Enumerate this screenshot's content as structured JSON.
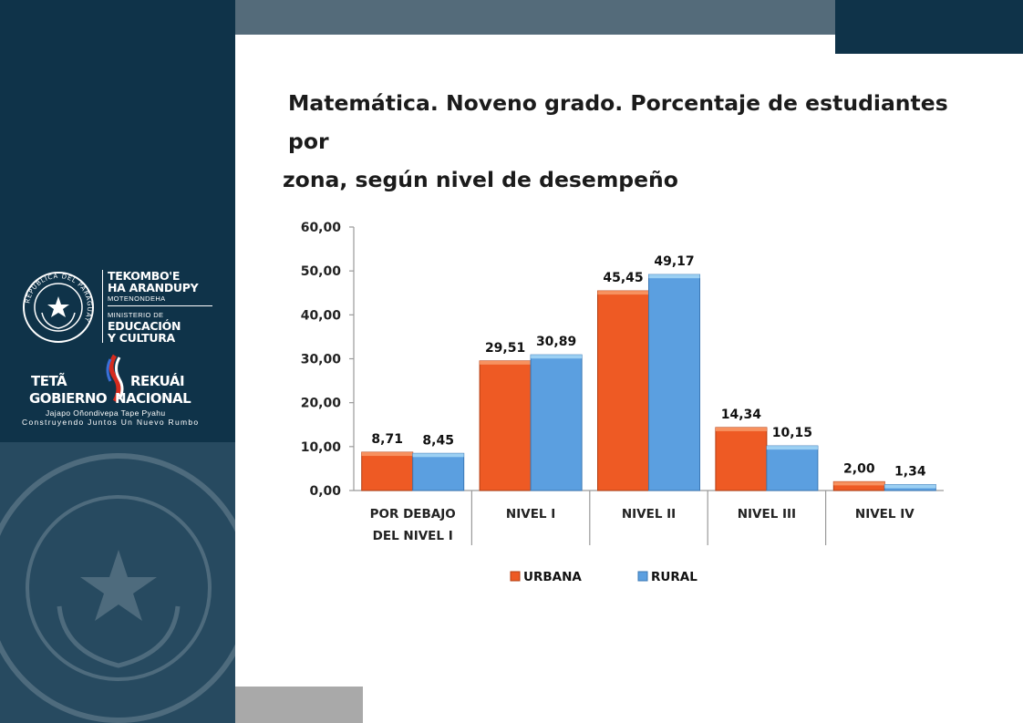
{
  "slide": {
    "title_line1": "Matemática. Noveno grado. Porcentaje de estudiantes por",
    "title_line2": "zona,  según nivel de desempeño"
  },
  "branding": {
    "seal_text": "REPUBLICA DEL PARAGUAY",
    "ministry_line1": "TEKOMBO'E",
    "ministry_line2": "HA ARANDUPY",
    "ministry_line3": "MOTENONDEHA",
    "ministry_line4": "MINISTERIO DE",
    "ministry_line5": "EDUCACIÓN",
    "ministry_line6": "Y CULTURA",
    "gov_tl": "TETÃ",
    "gov_tr": "REKUÁI",
    "gov_bl": "GOBIERNO",
    "gov_br": "NACIONAL",
    "gov_sub1": "Jajapo Oñondivepa Tape Pyahu",
    "gov_sub2": "Construyendo Juntos Un Nuevo Rumbo"
  },
  "colors": {
    "sidebar": "#0f3349",
    "urbana": "#ee5a24",
    "rural": "#5b9fe0",
    "top_bar": "#546b7a"
  },
  "chart_data": {
    "type": "bar",
    "categories": [
      [
        "POR DEBAJO",
        "DEL NIVEL I"
      ],
      [
        "NIVEL I"
      ],
      [
        "NIVEL II"
      ],
      [
        "NIVEL III"
      ],
      [
        "NIVEL IV"
      ]
    ],
    "series": [
      {
        "name": "URBANA",
        "values": [
          8.71,
          29.51,
          45.45,
          14.34,
          2.0
        ],
        "labels": [
          "8,71",
          "29,51",
          "45,45",
          "14,34",
          "2,00"
        ],
        "color": "#ee5a24"
      },
      {
        "name": "RURAL",
        "values": [
          8.45,
          30.89,
          49.17,
          10.15,
          1.34
        ],
        "labels": [
          "8,45",
          "30,89",
          "49,17",
          "10,15",
          "1,34"
        ],
        "color": "#5b9fe0"
      }
    ],
    "ylim": [
      0,
      60
    ],
    "yticks": [
      0,
      10,
      20,
      30,
      40,
      50,
      60
    ],
    "ytick_labels": [
      "0,00",
      "10,00",
      "20,00",
      "30,00",
      "40,00",
      "50,00",
      "60,00"
    ],
    "legend_position": "bottom",
    "grid": false
  }
}
